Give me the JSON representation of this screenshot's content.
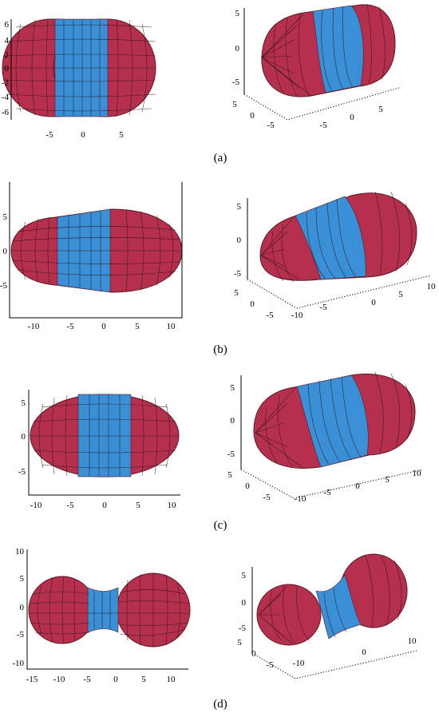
{
  "colors": {
    "cap": "#b5304d",
    "tube": "#3a8fd6",
    "edge": "#5a1a25"
  },
  "panels": [
    {
      "caption": "(a)",
      "flat": {
        "yticks": [
          "6",
          "4",
          "2",
          "0",
          "-2",
          "-4",
          "-6"
        ],
        "xticks": [
          "-5",
          "0",
          "5"
        ]
      },
      "iso": {
        "zticks": [
          "5",
          "0",
          "-5"
        ],
        "dticks": [
          "5",
          "0",
          "-5"
        ],
        "xticks": [
          "-5",
          "0",
          "5"
        ]
      }
    },
    {
      "caption": "(b)",
      "flat": {
        "yticks": [
          "5",
          "0",
          "-5"
        ],
        "xticks": [
          "-10",
          "-5",
          "0",
          "5",
          "10"
        ]
      },
      "iso": {
        "zticks": [
          "5",
          "0",
          "-5"
        ],
        "dticks": [
          "5",
          "0",
          "-5"
        ],
        "xticks": [
          "-10",
          "-5",
          "0",
          "5",
          "10"
        ]
      }
    },
    {
      "caption": "(c)",
      "flat": {
        "yticks": [
          "5",
          "0",
          "-5"
        ],
        "xticks": [
          "-10",
          "-5",
          "0",
          "5",
          "10"
        ]
      },
      "iso": {
        "zticks": [
          "5",
          "0",
          "-5"
        ],
        "dticks": [
          "5",
          "0",
          "-5"
        ],
        "xticks": [
          "-10",
          "-5",
          "0",
          "5",
          "10"
        ]
      }
    },
    {
      "caption": "(d)",
      "flat": {
        "yticks": [
          "10",
          "5",
          "0",
          "-5",
          "-10"
        ],
        "xticks": [
          "-15",
          "-10",
          "-5",
          "0",
          "5",
          "10"
        ]
      },
      "iso": {
        "zticks": [
          "5",
          "0",
          "-5"
        ],
        "dticks": [
          "5",
          "0",
          "-5"
        ],
        "xticks": [
          "-10",
          "0",
          "10"
        ]
      }
    }
  ]
}
